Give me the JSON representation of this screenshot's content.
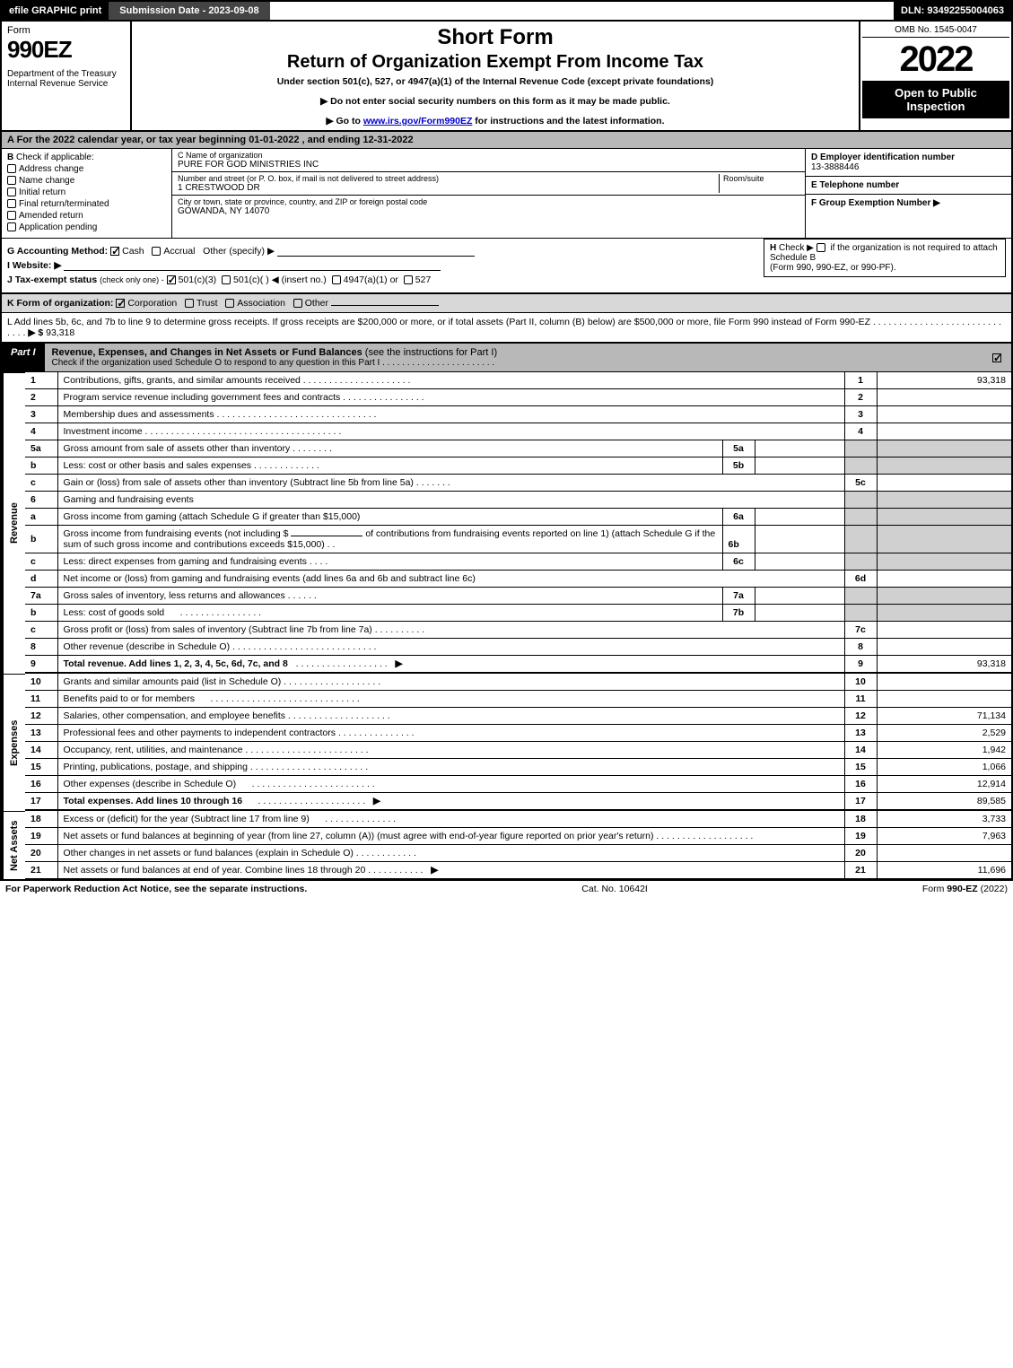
{
  "topbar": {
    "efile": "efile GRAPHIC print",
    "submission": "Submission Date - 2023-09-08",
    "dln": "DLN: 93492255004063"
  },
  "header": {
    "form_label": "Form",
    "form_num": "990EZ",
    "dept": "Department of the Treasury\nInternal Revenue Service",
    "short": "Short Form",
    "return_title": "Return of Organization Exempt From Income Tax",
    "subline": "Under section 501(c), 527, or 4947(a)(1) of the Internal Revenue Code (except private foundations)",
    "arrow1": "▶ Do not enter social security numbers on this form as it may be made public.",
    "arrow2_pre": "▶ Go to ",
    "arrow2_link": "www.irs.gov/Form990EZ",
    "arrow2_post": " for instructions and the latest information.",
    "omb": "OMB No. 1545-0047",
    "year": "2022",
    "open": "Open to Public Inspection"
  },
  "sectionA": "A  For the 2022 calendar year, or tax year beginning 01-01-2022  , and ending 12-31-2022",
  "sectionB": {
    "label": "B",
    "text": "Check if applicable:",
    "opts": [
      "Address change",
      "Name change",
      "Initial return",
      "Final return/terminated",
      "Amended return",
      "Application pending"
    ]
  },
  "sectionC": {
    "name_hint": "C Name of organization",
    "name": "PURE FOR GOD MINISTRIES INC",
    "street_hint": "Number and street (or P. O. box, if mail is not delivered to street address)",
    "room_hint": "Room/suite",
    "street": "1 CRESTWOOD DR",
    "city_hint": "City or town, state or province, country, and ZIP or foreign postal code",
    "city": "GOWANDA, NY  14070"
  },
  "sectionD": {
    "label": "D Employer identification number",
    "value": "13-3888446"
  },
  "sectionE": {
    "label": "E Telephone number",
    "value": ""
  },
  "sectionF": {
    "label": "F Group Exemption Number   ▶",
    "value": ""
  },
  "rowG": {
    "label": "G Accounting Method:",
    "cash": "Cash",
    "accrual": "Accrual",
    "other": "Other (specify) ▶"
  },
  "rowH": {
    "label": "H",
    "text1": "Check ▶",
    "text2": "if the organization is not required to attach Schedule B",
    "text3": "(Form 990, 990-EZ, or 990-PF)."
  },
  "rowI": {
    "label": "I Website: ▶",
    "value": ""
  },
  "rowJ": {
    "label": "J Tax-exempt status",
    "sub": "(check only one) -",
    "o1": "501(c)(3)",
    "o2": "501(c)(  )",
    "o2s": "◀ (insert no.)",
    "o3": "4947(a)(1) or",
    "o4": "527"
  },
  "rowK": {
    "label": "K Form of organization:",
    "o1": "Corporation",
    "o2": "Trust",
    "o3": "Association",
    "o4": "Other"
  },
  "rowL": {
    "text": "L Add lines 5b, 6c, and 7b to line 9 to determine gross receipts. If gross receipts are $200,000 or more, or if total assets (Part II, column (B) below) are $500,000 or more, file Form 990 instead of Form 990-EZ",
    "arrow": "▶ $",
    "value": "93,318"
  },
  "partI": {
    "tag": "Part I",
    "title": "Revenue, Expenses, and Changes in Net Assets or Fund Balances",
    "title_sub": "(see the instructions for Part I)",
    "checkline": "Check if the organization used Schedule O to respond to any question in this Part I"
  },
  "side_labels": {
    "revenue": "Revenue",
    "expenses": "Expenses",
    "netassets": "Net Assets"
  },
  "lines": {
    "1": {
      "d": "Contributions, gifts, grants, and similar amounts received",
      "ref": "1",
      "v": "93,318"
    },
    "2": {
      "d": "Program service revenue including government fees and contracts",
      "ref": "2",
      "v": ""
    },
    "3": {
      "d": "Membership dues and assessments",
      "ref": "3",
      "v": ""
    },
    "4": {
      "d": "Investment income",
      "ref": "4",
      "v": ""
    },
    "5a": {
      "d": "Gross amount from sale of assets other than inventory",
      "mini": "5a",
      "mv": ""
    },
    "5b": {
      "d": "Less: cost or other basis and sales expenses",
      "mini": "5b",
      "mv": ""
    },
    "5c": {
      "d": "Gain or (loss) from sale of assets other than inventory (Subtract line 5b from line 5a)",
      "ref": "5c",
      "v": ""
    },
    "6": {
      "d": "Gaming and fundraising events"
    },
    "6a": {
      "d": "Gross income from gaming (attach Schedule G if greater than $15,000)",
      "mini": "6a",
      "mv": ""
    },
    "6b": {
      "d1": "Gross income from fundraising events (not including $",
      "d2": "of contributions from fundraising events reported on line 1) (attach Schedule G if the sum of such gross income and contributions exceeds $15,000)",
      "mini": "6b",
      "mv": ""
    },
    "6c": {
      "d": "Less: direct expenses from gaming and fundraising events",
      "mini": "6c",
      "mv": ""
    },
    "6d": {
      "d": "Net income or (loss) from gaming and fundraising events (add lines 6a and 6b and subtract line 6c)",
      "ref": "6d",
      "v": ""
    },
    "7a": {
      "d": "Gross sales of inventory, less returns and allowances",
      "mini": "7a",
      "mv": ""
    },
    "7b": {
      "d": "Less: cost of goods sold",
      "mini": "7b",
      "mv": ""
    },
    "7c": {
      "d": "Gross profit or (loss) from sales of inventory (Subtract line 7b from line 7a)",
      "ref": "7c",
      "v": ""
    },
    "8": {
      "d": "Other revenue (describe in Schedule O)",
      "ref": "8",
      "v": ""
    },
    "9": {
      "d": "Total revenue. Add lines 1, 2, 3, 4, 5c, 6d, 7c, and 8",
      "ref": "9",
      "v": "93,318",
      "bold": true,
      "arrow": true
    },
    "10": {
      "d": "Grants and similar amounts paid (list in Schedule O)",
      "ref": "10",
      "v": ""
    },
    "11": {
      "d": "Benefits paid to or for members",
      "ref": "11",
      "v": ""
    },
    "12": {
      "d": "Salaries, other compensation, and employee benefits",
      "ref": "12",
      "v": "71,134"
    },
    "13": {
      "d": "Professional fees and other payments to independent contractors",
      "ref": "13",
      "v": "2,529"
    },
    "14": {
      "d": "Occupancy, rent, utilities, and maintenance",
      "ref": "14",
      "v": "1,942"
    },
    "15": {
      "d": "Printing, publications, postage, and shipping",
      "ref": "15",
      "v": "1,066"
    },
    "16": {
      "d": "Other expenses (describe in Schedule O)",
      "ref": "16",
      "v": "12,914"
    },
    "17": {
      "d": "Total expenses. Add lines 10 through 16",
      "ref": "17",
      "v": "89,585",
      "bold": true,
      "arrow": true
    },
    "18": {
      "d": "Excess or (deficit) for the year (Subtract line 17 from line 9)",
      "ref": "18",
      "v": "3,733"
    },
    "19": {
      "d": "Net assets or fund balances at beginning of year (from line 27, column (A)) (must agree with end-of-year figure reported on prior year's return)",
      "ref": "19",
      "v": "7,963"
    },
    "20": {
      "d": "Other changes in net assets or fund balances (explain in Schedule O)",
      "ref": "20",
      "v": ""
    },
    "21": {
      "d": "Net assets or fund balances at end of year. Combine lines 18 through 20",
      "ref": "21",
      "v": "11,696"
    }
  },
  "footer": {
    "left": "For Paperwork Reduction Act Notice, see the separate instructions.",
    "mid": "Cat. No. 10642I",
    "right_pre": "Form ",
    "right_form": "990-EZ",
    "right_post": " (2022)"
  },
  "colors": {
    "black": "#000000",
    "grey_header": "#b8b8b8",
    "grey_shade": "#d0d0d0",
    "link": "#0000cc"
  }
}
